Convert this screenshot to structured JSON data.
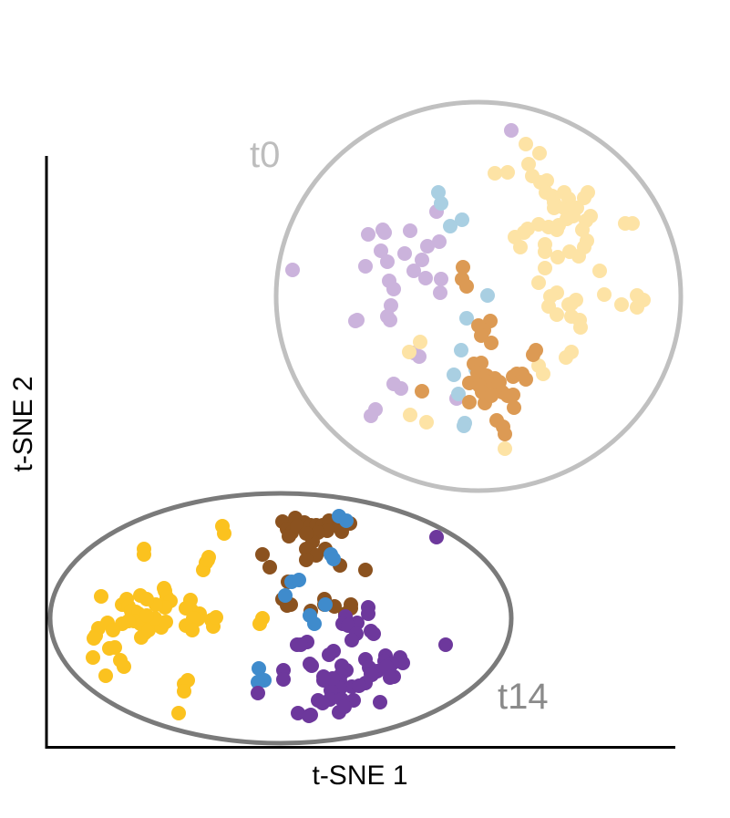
{
  "chart_data": {
    "type": "scatter",
    "xlabel": "t-SNE 1",
    "ylabel": "t-SNE 2",
    "xlim": [
      0,
      690
    ],
    "ylim": [
      0,
      650
    ],
    "grid": false,
    "groups": [
      {
        "label": "t0",
        "label_color": "#bdbdbd",
        "ellipse_color": "#c0c0c0",
        "ellipse": {
          "cx": 474,
          "cy": 495,
          "rx": 222,
          "ry": 213
        }
      },
      {
        "label": "t14",
        "label_color": "#8a8a8a",
        "ellipse_color": "#7a7a7a",
        "ellipse": {
          "cx": 257,
          "cy": 142,
          "rx": 253,
          "ry": 137
        }
      }
    ],
    "series": [
      {
        "color": "#cbb3dc",
        "points": [
          [
            510,
            677
          ],
          [
            428,
            588
          ],
          [
            431,
            555
          ],
          [
            418,
            550
          ],
          [
            399,
            567
          ],
          [
            369,
            568
          ],
          [
            353,
            563
          ],
          [
            367,
            545
          ],
          [
            374,
            533
          ],
          [
            371,
            565
          ],
          [
            350,
            528
          ],
          [
            376,
            512
          ],
          [
            393,
            542
          ],
          [
            403,
            523
          ],
          [
            381,
            503
          ],
          [
            412,
            535
          ],
          [
            416,
            515
          ],
          [
            433,
            514
          ],
          [
            432,
            499
          ],
          [
            378,
            485
          ],
          [
            374,
            473
          ],
          [
            270,
            524
          ],
          [
            339,
            468
          ],
          [
            377,
            469
          ],
          [
            341,
            469
          ],
          [
            409,
            429
          ],
          [
            403,
            433
          ],
          [
            389,
            394
          ],
          [
            381,
            399
          ],
          [
            361,
            371
          ],
          [
            356,
            364
          ],
          [
            450,
            383
          ]
        ]
      },
      {
        "color": "#fde3a5",
        "points": [
          [
            526,
            662
          ],
          [
            541,
            652
          ],
          [
            529,
            640
          ],
          [
            533,
            627
          ],
          [
            542,
            620
          ],
          [
            549,
            622
          ],
          [
            506,
            631
          ],
          [
            492,
            630
          ],
          [
            548,
            609
          ],
          [
            555,
            605
          ],
          [
            557,
            598
          ],
          [
            557,
            592
          ],
          [
            568,
            609
          ],
          [
            573,
            602
          ],
          [
            568,
            592
          ],
          [
            576,
            592
          ],
          [
            582,
            592
          ],
          [
            590,
            603
          ],
          [
            594,
            609
          ],
          [
            597,
            583
          ],
          [
            592,
            578
          ],
          [
            578,
            583
          ],
          [
            571,
            580
          ],
          [
            562,
            573
          ],
          [
            560,
            568
          ],
          [
            551,
            571
          ],
          [
            540,
            574
          ],
          [
            528,
            569
          ],
          [
            524,
            565
          ],
          [
            514,
            560
          ],
          [
            520,
            549
          ],
          [
            547,
            552
          ],
          [
            547,
            544
          ],
          [
            588,
            568
          ],
          [
            593,
            556
          ],
          [
            590,
            549
          ],
          [
            584,
            539
          ],
          [
            574,
            544
          ],
          [
            561,
            538
          ],
          [
            547,
            526
          ],
          [
            540,
            510
          ],
          [
            560,
            499
          ],
          [
            553,
            495
          ],
          [
            581,
            491
          ],
          [
            576,
            487
          ],
          [
            573,
            486
          ],
          [
            551,
            484
          ],
          [
            560,
            475
          ],
          [
            585,
            469
          ],
          [
            576,
            473
          ],
          [
            586,
            461
          ],
          [
            635,
            575
          ],
          [
            643,
            575
          ],
          [
            607,
            523
          ],
          [
            612,
            497
          ],
          [
            655,
            491
          ],
          [
            648,
            496
          ],
          [
            631,
            486
          ],
          [
            648,
            483
          ],
          [
            576,
            434
          ],
          [
            570,
            428
          ],
          [
            540,
            419
          ],
          [
            545,
            410
          ],
          [
            410,
            445
          ],
          [
            398,
            434
          ],
          [
            503,
            328
          ],
          [
            399,
            365
          ],
          [
            417,
            357
          ]
        ]
      },
      {
        "color": "#a9cfe2",
        "points": [
          [
            430,
            609
          ],
          [
            433,
            597
          ],
          [
            456,
            579
          ],
          [
            443,
            572
          ],
          [
            484,
            496
          ],
          [
            461,
            471
          ],
          [
            455,
            436
          ],
          [
            471,
            415
          ],
          [
            447,
            409
          ],
          [
            452,
            388
          ],
          [
            459,
            356
          ],
          [
            458,
            353
          ]
        ]
      },
      {
        "color": "#dc9a54",
        "points": [
          [
            457,
            527
          ],
          [
            456,
            514
          ],
          [
            461,
            506
          ],
          [
            487,
            468
          ],
          [
            480,
            458
          ],
          [
            474,
            463
          ],
          [
            477,
            452
          ],
          [
            488,
            444
          ],
          [
            537,
            436
          ],
          [
            534,
            431
          ],
          [
            469,
            421
          ],
          [
            477,
            422
          ],
          [
            473,
            411
          ],
          [
            483,
            408
          ],
          [
            492,
            405
          ],
          [
            484,
            401
          ],
          [
            497,
            401
          ],
          [
            512,
            407
          ],
          [
            516,
            410
          ],
          [
            522,
            410
          ],
          [
            526,
            404
          ],
          [
            464,
            400
          ],
          [
            475,
            397
          ],
          [
            495,
            396
          ],
          [
            500,
            390
          ],
          [
            478,
            390
          ],
          [
            481,
            378
          ],
          [
            488,
            386
          ],
          [
            412,
            391
          ],
          [
            464,
            379
          ],
          [
            506,
            386
          ],
          [
            512,
            387
          ],
          [
            513,
            373
          ],
          [
            494,
            359
          ],
          [
            501,
            352
          ],
          [
            503,
            344
          ]
        ]
      },
      {
        "color": "#fbc21f",
        "points": [
          [
            193,
            243
          ],
          [
            195,
            235
          ],
          [
            107,
            218
          ],
          [
            107,
            212
          ],
          [
            178,
            209
          ],
          [
            175,
            203
          ],
          [
            172,
            195
          ],
          [
            177,
            206
          ],
          [
            103,
            167
          ],
          [
            129,
            175
          ],
          [
            130,
            172
          ],
          [
            132,
            165
          ],
          [
            60,
            166
          ],
          [
            158,
            162
          ],
          [
            159,
            151
          ],
          [
            136,
            161
          ],
          [
            130,
            154
          ],
          [
            120,
            157
          ],
          [
            98,
            149
          ],
          [
            83,
            157
          ],
          [
            88,
            163
          ],
          [
            90,
            155
          ],
          [
            93,
            150
          ],
          [
            101,
            147
          ],
          [
            103,
            136
          ],
          [
            96,
            139
          ],
          [
            83,
            136
          ],
          [
            54,
            123
          ],
          [
            57,
            131
          ],
          [
            67,
            137
          ],
          [
            73,
            129
          ],
          [
            106,
            137
          ],
          [
            108,
            126
          ],
          [
            104,
            121
          ],
          [
            112,
            129
          ],
          [
            122,
            137
          ],
          [
            126,
            132
          ],
          [
            131,
            138
          ],
          [
            119,
            142
          ],
          [
            110,
            145
          ],
          [
            110,
            163
          ],
          [
            90,
            139
          ],
          [
            168,
            147
          ],
          [
            166,
            141
          ],
          [
            153,
            153
          ],
          [
            161,
            142
          ],
          [
            181,
            140
          ],
          [
            183,
            133
          ],
          [
            153,
            134
          ],
          [
            160,
            129
          ],
          [
            186,
            143
          ],
          [
            237,
            142
          ],
          [
            234,
            136
          ],
          [
            69,
            109
          ],
          [
            75,
            110
          ],
          [
            52,
            120
          ],
          [
            51,
            99
          ],
          [
            65,
            79
          ],
          [
            85,
            89
          ],
          [
            81,
            96
          ],
          [
            151,
            70
          ],
          [
            155,
            74
          ],
          [
            151,
            62
          ],
          [
            145,
            38
          ]
        ]
      },
      {
        "color": "#8b521f",
        "points": [
          [
            259,
            248
          ],
          [
            264,
            240
          ],
          [
            269,
            236
          ],
          [
            266,
            232
          ],
          [
            273,
            252
          ],
          [
            283,
            247
          ],
          [
            275,
            243
          ],
          [
            290,
            244
          ],
          [
            296,
            244
          ],
          [
            303,
            244
          ],
          [
            310,
            249
          ],
          [
            324,
            237
          ],
          [
            333,
            246
          ],
          [
            321,
            242
          ],
          [
            308,
            238
          ],
          [
            298,
            236
          ],
          [
            292,
            226
          ],
          [
            285,
            235
          ],
          [
            285,
            218
          ],
          [
            306,
            218
          ],
          [
            296,
            211
          ],
          [
            285,
            206
          ],
          [
            237,
            212
          ],
          [
            245,
            198
          ],
          [
            322,
            200
          ],
          [
            350,
            195
          ],
          [
            265,
            182
          ],
          [
            259,
            163
          ],
          [
            264,
            156
          ],
          [
            268,
            157
          ],
          [
            305,
            163
          ],
          [
            305,
            157
          ],
          [
            316,
            155
          ],
          [
            334,
            157
          ],
          [
            290,
            150
          ],
          [
            334,
            153
          ],
          [
            328,
            147
          ]
        ]
      },
      {
        "color": "#3f8bcc",
        "points": [
          [
            321,
            254
          ],
          [
            329,
            249
          ],
          [
            312,
            212
          ],
          [
            315,
            207
          ],
          [
            269,
            182
          ],
          [
            277,
            184
          ],
          [
            262,
            167
          ],
          [
            306,
            157
          ],
          [
            289,
            145
          ],
          [
            294,
            136
          ],
          [
            233,
            87
          ],
          [
            239,
            74
          ],
          [
            232,
            72
          ]
        ]
      },
      {
        "color": "#6d389c",
        "points": [
          [
            428,
            231
          ],
          [
            353,
            154
          ],
          [
            328,
            144
          ],
          [
            353,
            147
          ],
          [
            341,
            137
          ],
          [
            325,
            136
          ],
          [
            331,
            134
          ],
          [
            340,
            125
          ],
          [
            356,
            128
          ],
          [
            359,
            125
          ],
          [
            335,
            118
          ],
          [
            286,
            116
          ],
          [
            275,
            113
          ],
          [
            279,
            113
          ],
          [
            315,
            106
          ],
          [
            310,
            102
          ],
          [
            350,
            97
          ],
          [
            372,
            101
          ],
          [
            371,
            95
          ],
          [
            388,
            99
          ],
          [
            391,
            93
          ],
          [
            354,
            88
          ],
          [
            363,
            84
          ],
          [
            356,
            81
          ],
          [
            357,
            80
          ],
          [
            324,
            90
          ],
          [
            329,
            85
          ],
          [
            323,
            80
          ],
          [
            322,
            73
          ],
          [
            379,
            92
          ],
          [
            373,
            89
          ],
          [
            381,
            78
          ],
          [
            377,
            77
          ],
          [
            350,
            71
          ],
          [
            335,
            67
          ],
          [
            319,
            69
          ],
          [
            322,
            65
          ],
          [
            312,
            63
          ],
          [
            311,
            53
          ],
          [
            324,
            53
          ],
          [
            298,
            52
          ],
          [
            303,
            49
          ],
          [
            289,
            92
          ],
          [
            291,
            90
          ],
          [
            260,
            85
          ],
          [
            260,
            75
          ],
          [
            232,
            60
          ],
          [
            304,
            74
          ],
          [
            314,
            76
          ],
          [
            304,
            78
          ],
          [
            343,
            68
          ],
          [
            337,
            52
          ],
          [
            366,
            50
          ],
          [
            321,
            39
          ],
          [
            327,
            45
          ],
          [
            276,
            38
          ],
          [
            288,
            35
          ],
          [
            290,
            36
          ],
          [
            438,
            113
          ]
        ]
      }
    ]
  }
}
